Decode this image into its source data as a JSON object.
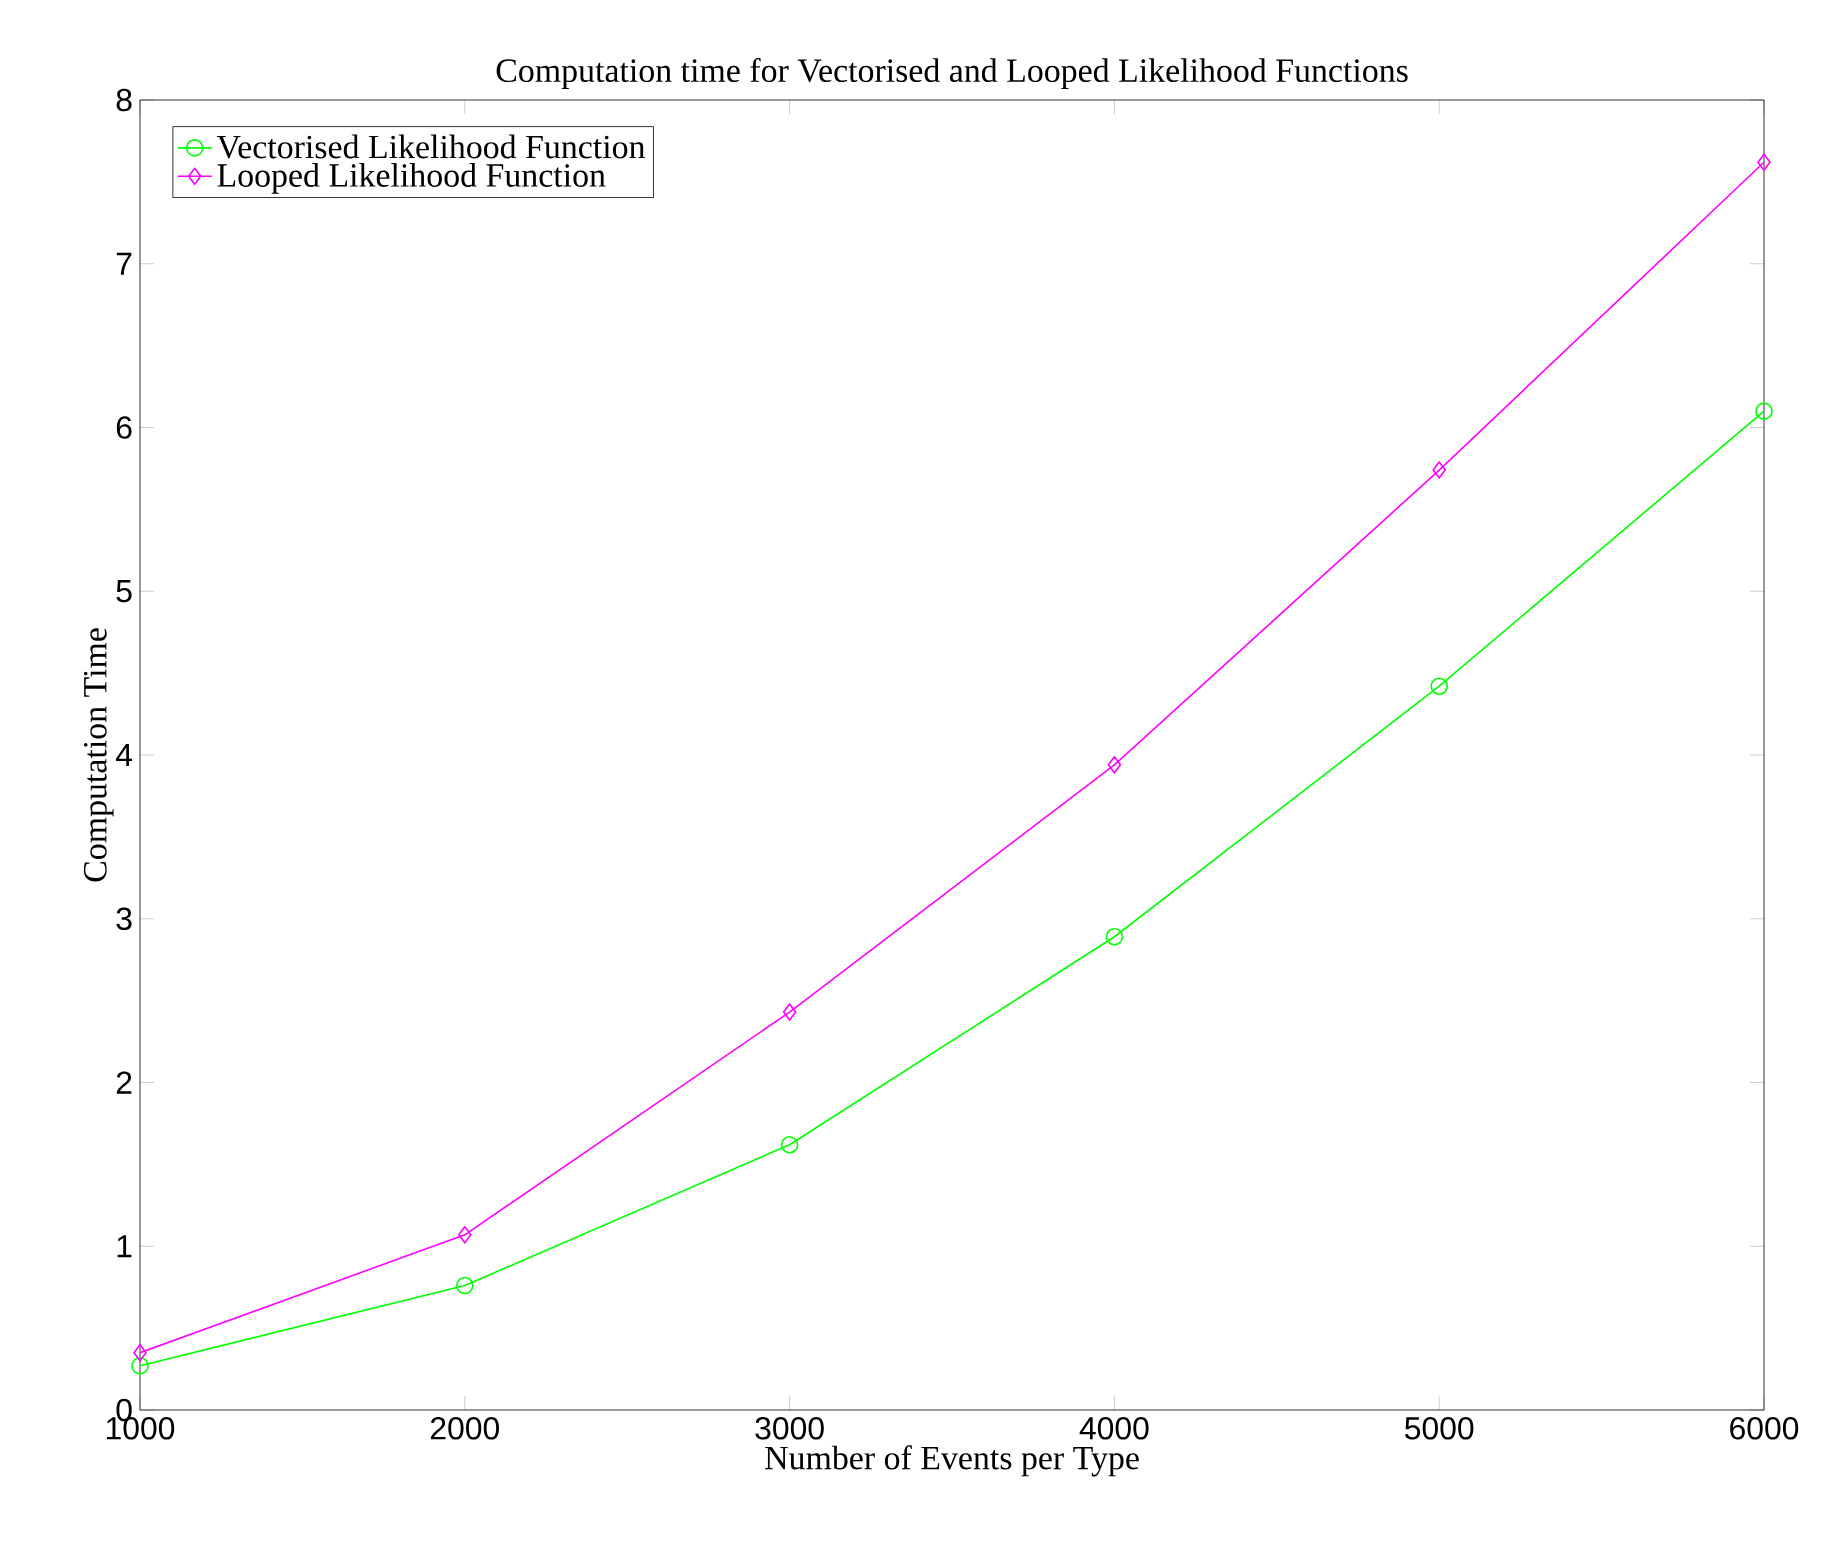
{
  "chart_data": {
    "type": "line",
    "title": "Computation time for Vectorised and Looped Likelihood Functions",
    "xlabel": "Number of Events per Type",
    "ylabel": "Computation Time",
    "x": [
      1000,
      2000,
      3000,
      4000,
      5000,
      6000
    ],
    "series": [
      {
        "name": "Vectorised Likelihood Function",
        "color": "#00ff00",
        "marker": "circle",
        "values": [
          0.27,
          0.76,
          1.62,
          2.89,
          4.42,
          6.1
        ]
      },
      {
        "name": "Looped Likelihood Function",
        "color": "#ff00ff",
        "marker": "diamond",
        "values": [
          0.35,
          1.07,
          2.43,
          3.94,
          5.74,
          7.62
        ]
      }
    ],
    "xlim": [
      1000,
      6000
    ],
    "ylim": [
      0,
      8
    ],
    "xticks": [
      1000,
      2000,
      3000,
      4000,
      5000,
      6000
    ],
    "yticks": [
      0,
      1,
      2,
      3,
      4,
      5,
      6,
      7,
      8
    ],
    "grid": false,
    "legend": "top left",
    "line_style": "solid"
  }
}
